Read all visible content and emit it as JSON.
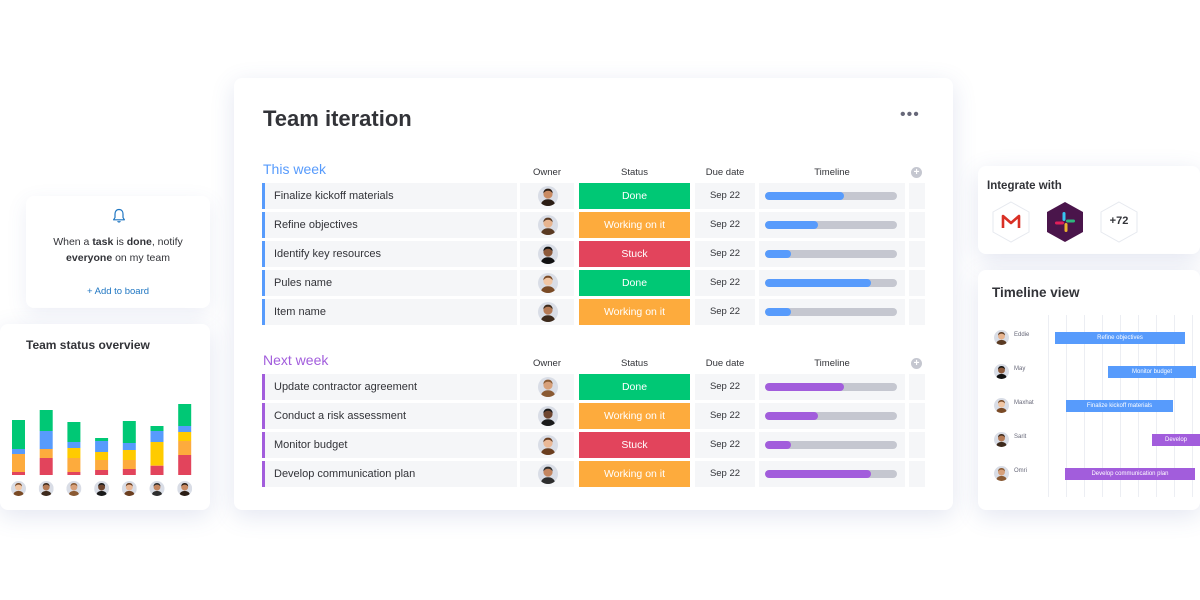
{
  "notification": {
    "text_prefix": "When a ",
    "text_task": "task",
    "text_is": " is ",
    "text_done": "done",
    "text_notify": ", notify",
    "text_everyone": "everyone",
    "text_suffix": " on my team",
    "add_label": "+ Add to board",
    "icon": "bell-icon"
  },
  "status_overview": {
    "title": "Team status overview",
    "colors": {
      "done": "#00c875",
      "info": "#579bfc",
      "working": "#fdab3d",
      "yellow": "#ffcb00",
      "stuck": "#e2445c"
    },
    "chart_data": {
      "type": "bar",
      "stacked": true,
      "categories": [
        "1",
        "2",
        "3",
        "4",
        "5",
        "6",
        "7"
      ],
      "series": [
        {
          "key": "stuck",
          "values": [
            3,
            17,
            3,
            5,
            6,
            9,
            20
          ]
        },
        {
          "key": "working",
          "values": [
            18,
            9,
            14,
            10,
            9,
            1,
            14
          ]
        },
        {
          "key": "yellow",
          "values": [
            0,
            0,
            10,
            8,
            10,
            23,
            9
          ]
        },
        {
          "key": "info",
          "values": [
            5,
            18,
            6,
            11,
            7,
            11,
            6
          ]
        },
        {
          "key": "done",
          "values": [
            29,
            21,
            20,
            3,
            22,
            5,
            22
          ]
        }
      ]
    }
  },
  "board": {
    "title": "Team iteration",
    "more_label": "•••",
    "columns": {
      "owner": "Owner",
      "status": "Status",
      "due": "Due date",
      "timeline": "Timeline"
    },
    "status_colors": {
      "Done": "#00c875",
      "Working on it": "#fdab3d",
      "Stuck": "#e2445c"
    },
    "groups": [
      {
        "title": "This week",
        "color": "#579bfc",
        "rows": [
          {
            "name": "Finalize kickoff materials",
            "status": "Done",
            "due": "Sep 22",
            "progress": 0.6
          },
          {
            "name": "Refine objectives",
            "status": "Working on it",
            "due": "Sep 22",
            "progress": 0.4
          },
          {
            "name": "Identify key resources",
            "status": "Stuck",
            "due": "Sep 22",
            "progress": 0.2
          },
          {
            "name": "Pules name",
            "status": "Done",
            "due": "Sep 22",
            "progress": 0.8
          },
          {
            "name": "Item name",
            "status": "Working on it",
            "due": "Sep 22",
            "progress": 0.2
          }
        ]
      },
      {
        "title": "Next week",
        "color": "#a25ddc",
        "rows": [
          {
            "name": "Update contractor agreement",
            "status": "Done",
            "due": "Sep 22",
            "progress": 0.6
          },
          {
            "name": "Conduct a risk assessment",
            "status": "Working on it",
            "due": "Sep 22",
            "progress": 0.4
          },
          {
            "name": "Monitor budget",
            "status": "Stuck",
            "due": "Sep 22",
            "progress": 0.2
          },
          {
            "name": "Develop communication plan",
            "status": "Working on it",
            "due": "Sep 22",
            "progress": 0.8
          }
        ]
      }
    ]
  },
  "integrate": {
    "title": "Integrate with",
    "apps": [
      {
        "icon": "gmail-icon"
      },
      {
        "icon": "slack-icon"
      },
      {
        "label": "+72"
      }
    ]
  },
  "timeline_view": {
    "title": "Timeline view",
    "rows": [
      {
        "name": "Eddie",
        "task": "Refine objectives",
        "color": "#579bfc"
      },
      {
        "name": "May",
        "task": "Monitor budget",
        "color": "#579bfc"
      },
      {
        "name": "Maxhat",
        "task": "Finalize kickoff materials",
        "color": "#579bfc"
      },
      {
        "name": "Sarit",
        "task": "Develop",
        "color": "#a25ddc"
      },
      {
        "name": "Omri",
        "task": "Develop communication plan",
        "color": "#a25ddc"
      }
    ]
  }
}
